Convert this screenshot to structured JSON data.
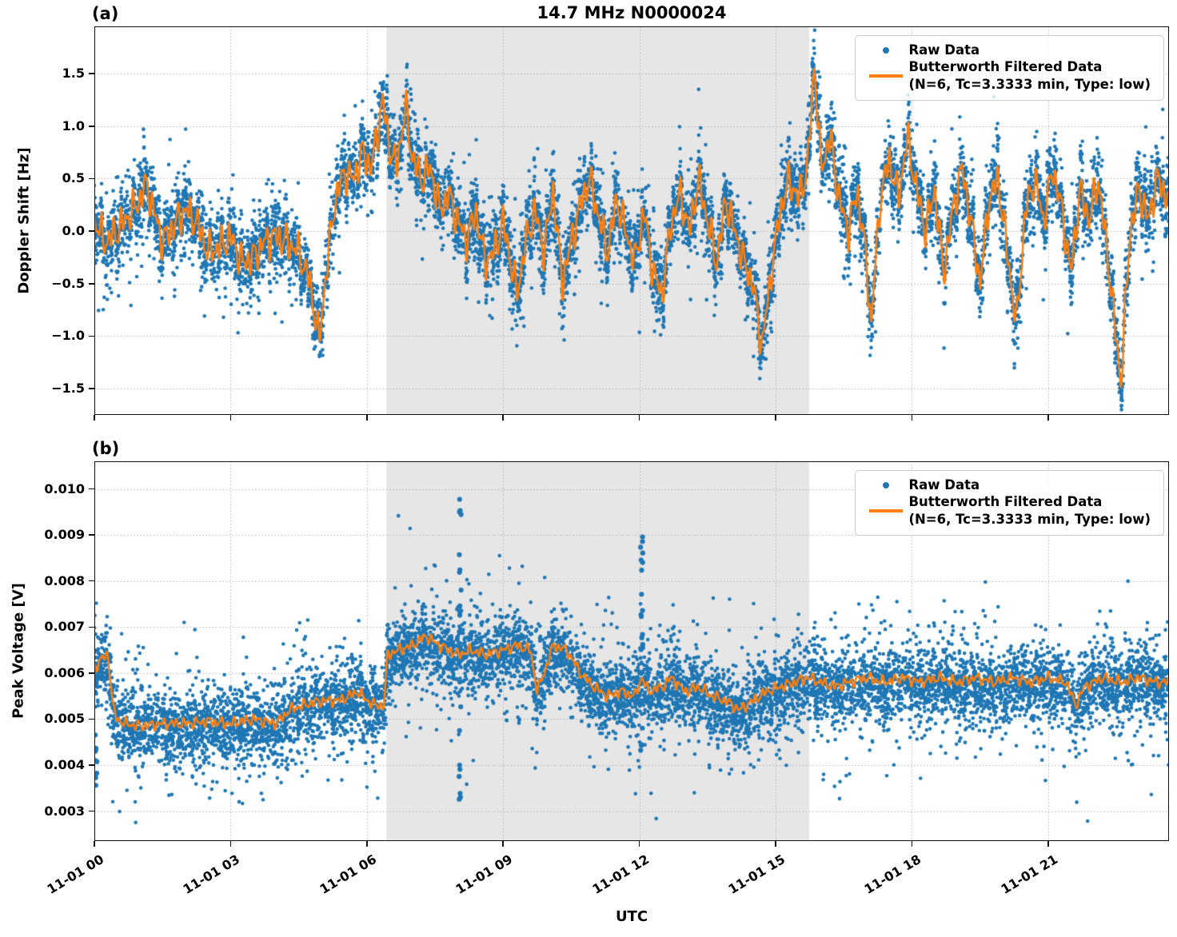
{
  "figure": {
    "title": "14.7 MHz N0000024",
    "xlabel": "UTC"
  },
  "panels": {
    "a": {
      "label": "(a)",
      "ylabel": "Doppler Shift [Hz]"
    },
    "b": {
      "label": "(b)",
      "ylabel": "Peak Voltage [V]"
    }
  },
  "legend": {
    "raw_label": "Raw Data",
    "filtered_label_line1": "Butterworth Filtered Data",
    "filtered_label_line2": "(N=6, Tc=3.3333 min, Type: low)"
  },
  "colors": {
    "raw": "#1f77b4",
    "filtered": "#ff7f0e",
    "shade": "#e6e6e6",
    "grid": "#b3b3b3"
  },
  "chart_data": [
    {
      "id": "a",
      "type": "scatter",
      "title": "(a)",
      "xlabel": "UTC",
      "ylabel": "Doppler Shift [Hz]",
      "xlim": [
        0,
        23.66
      ],
      "ylim": [
        -1.75,
        1.95
      ],
      "xticks": {
        "hours": [
          0,
          3,
          6,
          9,
          12,
          15,
          18,
          21
        ],
        "labels": [
          "11-01 00",
          "11-01 03",
          "11-01 06",
          "11-01 09",
          "11-01 12",
          "11-01 15",
          "11-01 18",
          "11-01 21"
        ]
      },
      "yticks": {
        "values": [
          1.5,
          1.0,
          0.5,
          0.0,
          -0.5,
          -1.0,
          -1.5
        ],
        "labels": [
          "1.5",
          "1.0",
          "0.5",
          "0.0",
          "−0.5",
          "−1.0",
          "−1.5"
        ]
      },
      "grid": true,
      "legend_position": "upper right",
      "shaded_region_hours": [
        6.43,
        15.74
      ],
      "series": [
        {
          "name": "Raw Data",
          "style": "scatter",
          "seed": 42,
          "n_points": 9200,
          "sigma_core": 0.13,
          "sigma_tail": 0.27,
          "core_fraction": 0.75,
          "bias": 0.0,
          "outlier_columns": []
        },
        {
          "name": "Butterworth Filtered Data (N=6, Tc=3.3333 min, Type: low)",
          "style": "line",
          "wiggle_amp": 0.17,
          "wiggle_periods": [
            0.14,
            0.085,
            0.24
          ],
          "wiggle_weights": [
            0.55,
            0.33,
            0.38
          ],
          "wiggle_phases": [
            0.9,
            2.3,
            4.1
          ],
          "keypoints_t": [
            0,
            0.25,
            0.5,
            0.75,
            1.0,
            1.15,
            1.3,
            1.5,
            1.75,
            2.0,
            2.25,
            2.5,
            2.75,
            3.0,
            3.25,
            3.5,
            3.75,
            4.0,
            4.25,
            4.5,
            4.75,
            4.95,
            5.1,
            5.3,
            5.5,
            5.7,
            5.9,
            6.1,
            6.35,
            6.5,
            6.65,
            6.85,
            7.0,
            7.2,
            7.4,
            7.6,
            7.8,
            8.0,
            8.2,
            8.4,
            8.6,
            8.8,
            9.0,
            9.3,
            9.5,
            9.7,
            9.9,
            10.1,
            10.3,
            10.5,
            10.7,
            10.9,
            11.1,
            11.3,
            11.5,
            11.7,
            11.9,
            12.1,
            12.3,
            12.5,
            12.7,
            12.9,
            13.1,
            13.3,
            13.5,
            13.7,
            13.9,
            14.1,
            14.3,
            14.5,
            14.7,
            14.9,
            15.1,
            15.3,
            15.5,
            15.7,
            15.85,
            16.0,
            16.2,
            16.4,
            16.6,
            16.8,
            17.0,
            17.1,
            17.3,
            17.5,
            17.7,
            17.9,
            18.1,
            18.3,
            18.5,
            18.7,
            18.9,
            19.1,
            19.3,
            19.5,
            19.7,
            19.9,
            20.1,
            20.3,
            20.5,
            20.7,
            20.9,
            21.1,
            21.3,
            21.5,
            21.7,
            21.9,
            22.1,
            22.3,
            22.6,
            22.8,
            23.0,
            23.2,
            23.4,
            23.66
          ],
          "keypoints_v": [
            0.1,
            -0.1,
            0.0,
            0.15,
            0.3,
            0.45,
            0.2,
            -0.1,
            0.05,
            0.2,
            0.1,
            -0.2,
            -0.15,
            -0.05,
            -0.3,
            -0.25,
            -0.1,
            -0.05,
            -0.1,
            -0.2,
            -0.5,
            -1.05,
            -0.4,
            0.3,
            0.55,
            0.5,
            0.75,
            0.6,
            1.25,
            0.8,
            0.6,
            1.2,
            0.7,
            0.5,
            0.6,
            0.2,
            0.35,
            0.1,
            -0.1,
            0.2,
            -0.3,
            -0.2,
            0.1,
            -0.6,
            -0.1,
            0.2,
            -0.2,
            0.4,
            -0.5,
            -0.1,
            0.25,
            0.5,
            0.15,
            -0.2,
            0.3,
            0.0,
            -0.3,
            0.2,
            -0.4,
            -0.6,
            0.1,
            0.35,
            0.0,
            0.5,
            0.1,
            -0.3,
            0.3,
            0.0,
            -0.3,
            -0.5,
            -1.1,
            -0.4,
            0.2,
            0.5,
            0.3,
            0.6,
            1.6,
            0.6,
            0.9,
            0.3,
            0.0,
            0.4,
            -0.3,
            -0.9,
            0.3,
            0.7,
            0.3,
            0.9,
            0.4,
            0.0,
            0.4,
            -0.4,
            0.2,
            0.6,
            0.1,
            -0.5,
            0.3,
            0.5,
            -0.2,
            -0.9,
            0.2,
            0.5,
            0.1,
            0.6,
            0.2,
            -0.4,
            0.4,
            0.1,
            0.5,
            -0.2,
            -1.45,
            0.0,
            0.4,
            0.1,
            0.5,
            0.3
          ]
        }
      ]
    },
    {
      "id": "b",
      "type": "scatter",
      "title": "(b)",
      "xlabel": "UTC",
      "ylabel": "Peak Voltage [V]",
      "xlim": [
        0,
        23.66
      ],
      "ylim": [
        0.00235,
        0.0106
      ],
      "xticks": {
        "hours": [
          0,
          3,
          6,
          9,
          12,
          15,
          18,
          21
        ],
        "labels": [
          "11-01 00",
          "11-01 03",
          "11-01 06",
          "11-01 09",
          "11-01 12",
          "11-01 15",
          "11-01 18",
          "11-01 21"
        ]
      },
      "yticks": {
        "values": [
          0.01,
          0.009,
          0.008,
          0.007,
          0.006,
          0.005,
          0.004,
          0.003
        ],
        "labels": [
          "0.010",
          "0.009",
          "0.008",
          "0.007",
          "0.006",
          "0.005",
          "0.004",
          "0.003"
        ]
      },
      "grid": true,
      "legend_position": "upper right",
      "shaded_region_hours": [
        6.43,
        15.74
      ],
      "series": [
        {
          "name": "Raw Data",
          "style": "scatter",
          "seed": 7,
          "n_points": 9200,
          "sigma_core": 0.00035,
          "sigma_tail": 0.00075,
          "core_fraction": 0.75,
          "bias": -8e-05,
          "outlier_columns": [
            {
              "t": 0.04,
              "lo": 0.0026,
              "hi": 0.0047,
              "n": 10
            },
            {
              "t": 8.05,
              "lo": 0.0031,
              "hi": 0.0103,
              "n": 26
            },
            {
              "t": 12.05,
              "lo": 0.0037,
              "hi": 0.0091,
              "n": 24
            }
          ]
        },
        {
          "name": "Butterworth Filtered Data (N=6, Tc=3.3333 min, Type: low)",
          "style": "line",
          "wiggle_amp": 0.00012,
          "wiggle_periods": [
            0.14,
            0.085,
            0.26
          ],
          "wiggle_weights": [
            0.55,
            0.33,
            0.38
          ],
          "wiggle_phases": [
            1.7,
            0.6,
            3.3
          ],
          "keypoints_t": [
            0,
            0.15,
            0.3,
            0.42,
            0.5,
            0.7,
            1.0,
            1.5,
            2.0,
            2.5,
            3.0,
            3.5,
            4.0,
            4.3,
            4.6,
            5.0,
            5.4,
            5.8,
            6.0,
            6.2,
            6.38,
            6.45,
            6.7,
            7.0,
            7.3,
            7.6,
            8.0,
            8.3,
            8.6,
            9.0,
            9.3,
            9.6,
            9.75,
            9.9,
            10.1,
            10.4,
            10.7,
            11.0,
            11.3,
            11.6,
            11.9,
            12.05,
            12.2,
            12.5,
            12.7,
            13.0,
            13.3,
            13.6,
            13.9,
            14.2,
            14.5,
            14.8,
            15.1,
            15.4,
            15.7,
            16.0,
            16.3,
            16.6,
            17.0,
            17.4,
            17.8,
            18.2,
            18.6,
            19.0,
            19.4,
            19.8,
            20.2,
            20.6,
            21.0,
            21.4,
            21.6,
            21.8,
            22.2,
            22.6,
            23.0,
            23.4,
            23.66
          ],
          "keypoints_v": [
            0.0061,
            0.0063,
            0.0064,
            0.0052,
            0.005,
            0.0049,
            0.00485,
            0.0049,
            0.0049,
            0.00495,
            0.0049,
            0.005,
            0.0049,
            0.0052,
            0.0053,
            0.0054,
            0.0054,
            0.0056,
            0.0054,
            0.0053,
            0.0053,
            0.0064,
            0.0065,
            0.0066,
            0.0068,
            0.0066,
            0.0064,
            0.0065,
            0.0064,
            0.0065,
            0.0066,
            0.0065,
            0.0056,
            0.006,
            0.0066,
            0.0065,
            0.006,
            0.0057,
            0.0055,
            0.0056,
            0.0055,
            0.0059,
            0.0056,
            0.0057,
            0.0059,
            0.0056,
            0.0057,
            0.0055,
            0.0054,
            0.0052,
            0.0054,
            0.0056,
            0.0057,
            0.0058,
            0.0059,
            0.0058,
            0.0057,
            0.0058,
            0.0059,
            0.0058,
            0.0059,
            0.0058,
            0.0059,
            0.0058,
            0.0059,
            0.0058,
            0.0059,
            0.0058,
            0.0059,
            0.0058,
            0.0053,
            0.0057,
            0.0059,
            0.0058,
            0.0059,
            0.0058,
            0.0058
          ]
        }
      ]
    }
  ]
}
